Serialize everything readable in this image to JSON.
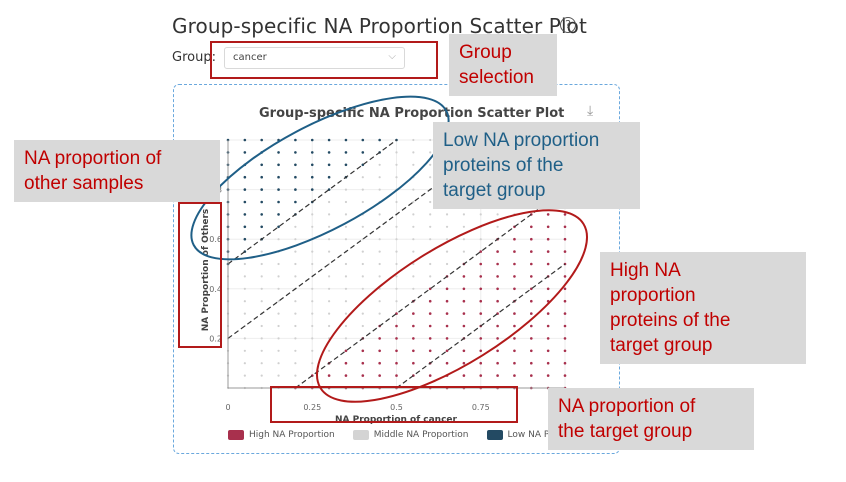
{
  "page": {
    "title": "Group-specific NA Proportion Scatter Plot",
    "help_icon": "question-circle-icon"
  },
  "group_selector": {
    "label": "Group:",
    "value": "cancer"
  },
  "chart_data": {
    "type": "scatter",
    "title": "Group-specific NA Proportion Scatter Plot",
    "xlabel": "NA Proportion of cancer",
    "ylabel": "NA Proportion of Others",
    "xlim": [
      0,
      1
    ],
    "ylim": [
      0,
      1
    ],
    "x_ticks": [
      "0",
      "0.25",
      "0.5",
      "0.75"
    ],
    "y_ticks": [
      "0.2",
      "0.4",
      "0.6",
      "0.8"
    ],
    "grid": true,
    "legend_position": "bottom",
    "series": [
      {
        "name": "High NA Proportion",
        "color": "#a8304d"
      },
      {
        "name": "Middle NA Proportion",
        "color": "#d4d4d4"
      },
      {
        "name": "Low NA Proportion",
        "color": "#234a63"
      }
    ],
    "threshold_lines": [
      {
        "intercept": 0.5,
        "slope": 1
      },
      {
        "intercept": 0.2,
        "slope": 1
      },
      {
        "intercept": -0.2,
        "slope": 1
      },
      {
        "intercept": -0.5,
        "slope": 1
      }
    ],
    "grid_step": 0.05,
    "low_rule": "y - x >= 0.5",
    "high_rule": "x - y >= 0.2"
  },
  "annotations": {
    "group_selection": "Group\nselection",
    "low_na": "Low NA proportion\nproteins of the\ntarget group",
    "na_other": "NA proportion of\nother samples",
    "high_na": "High NA\nproportion\nproteins of the\ntarget group",
    "na_target": "NA proportion of\nthe target group"
  }
}
